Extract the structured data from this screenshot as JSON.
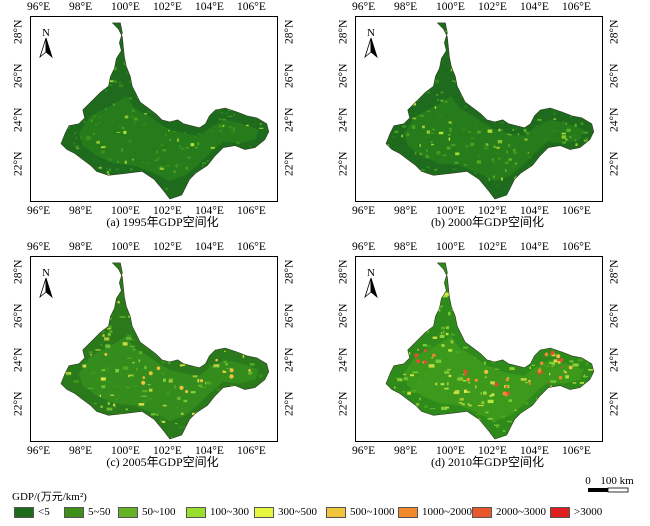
{
  "panels": [
    {
      "caption": "(a) 1995年GDP空间化",
      "top_ticks": [
        "96°E",
        "98°E",
        "100°E",
        "102°E",
        "104°E",
        "106°E"
      ],
      "bottom_ticks": [
        "96°E",
        "98°E",
        "100°E",
        "102°E",
        "104°E",
        "106°E"
      ],
      "left_ticks": [
        "28°N",
        "26°N",
        "24°N",
        "22°N"
      ],
      "right_ticks": [
        "28°N",
        "26°N",
        "24°N",
        "22°N"
      ],
      "north_label": "N"
    },
    {
      "caption": "(b) 2000年GDP空间化",
      "top_ticks": [
        "96°E",
        "98°E",
        "100°E",
        "102°E",
        "104°E",
        "106°E"
      ],
      "bottom_ticks": [
        "96°E",
        "98°E",
        "100°E",
        "102°E",
        "104°E",
        "106°E"
      ],
      "left_ticks": [
        "28°N",
        "26°N",
        "24°N",
        "22°N"
      ],
      "right_ticks": [
        "28°N",
        "26°N",
        "24°N",
        "22°N"
      ],
      "north_label": "N"
    },
    {
      "caption": "(c) 2005年GDP空间化",
      "top_ticks": [
        "96°E",
        "98°E",
        "100°E",
        "102°E",
        "104°E",
        "106°E"
      ],
      "bottom_ticks": [
        "96°E",
        "98°E",
        "100°E",
        "102°E",
        "104°E",
        "106°E"
      ],
      "left_ticks": [
        "28°N",
        "26°N",
        "24°N",
        "22°N"
      ],
      "right_ticks": [
        "28°N",
        "26°N",
        "24°N",
        "22°N"
      ],
      "north_label": "N"
    },
    {
      "caption": "(d) 2010年GDP空间化",
      "top_ticks": [
        "96°E",
        "98°E",
        "100°E",
        "102°E",
        "104°E",
        "106°E"
      ],
      "bottom_ticks": [
        "96°E",
        "98°E",
        "100°E",
        "102°E",
        "104°E",
        "106°E"
      ],
      "left_ticks": [
        "28°N",
        "26°N",
        "24°N",
        "22°N"
      ],
      "right_ticks": [
        "28°N",
        "26°N",
        "24°N",
        "22°N"
      ],
      "north_label": "N"
    }
  ],
  "panel_palettes": [
    [
      "#1e6b1e",
      "#2e8a1a",
      "#4ba51f",
      "#3f9320",
      "#b9e83a"
    ],
    [
      "#1e6b1e",
      "#2e8a1a",
      "#4ba51f",
      "#62b825",
      "#c9ec3c"
    ],
    [
      "#2a7a1c",
      "#3a9a1e",
      "#5ab425",
      "#7fd23a",
      "#e6e64a"
    ],
    [
      "#2e8a1a",
      "#4ba51f",
      "#7fd23a",
      "#b5e83e",
      "#e9e84a"
    ]
  ],
  "panel_hotspots": [
    [],
    [],
    [
      "#f0c040"
    ],
    [
      "#f0c040",
      "#f08a30",
      "#e05030"
    ]
  ],
  "legend": {
    "title": "GDP/(万元/km²)",
    "items": [
      {
        "label": "<5",
        "color": "#1e6b1e"
      },
      {
        "label": "5~50",
        "color": "#3f8f1d"
      },
      {
        "label": "50~100",
        "color": "#66b226"
      },
      {
        "label": "100~300",
        "color": "#99dd2e"
      },
      {
        "label": "300~500",
        "color": "#e6f53e"
      },
      {
        "label": "500~1000",
        "color": "#f2c63c"
      },
      {
        "label": "1000~2000",
        "color": "#f28a2b"
      },
      {
        "label": "2000~3000",
        "color": "#e8582c"
      },
      {
        "label": ">3000",
        "color": "#e01e1e"
      }
    ]
  },
  "scalebar": {
    "zero": "0",
    "label": "100 km"
  }
}
